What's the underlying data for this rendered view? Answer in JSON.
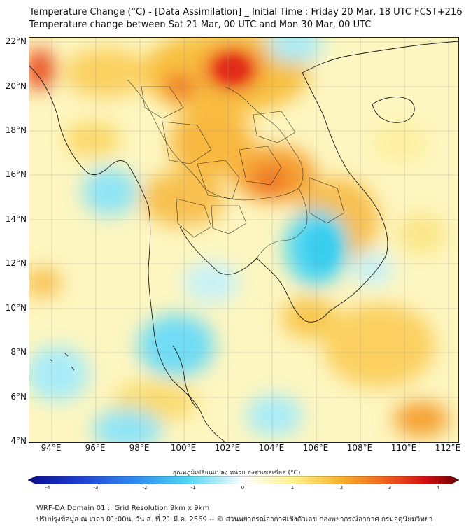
{
  "header": {
    "title_line1": "Temperature Change (°C) - [Data Assimilation] _ Initial Time : Friday 20 Mar, 18 UTC FCST+216",
    "title_line2": "Temperature change between Sat 21 Mar, 00 UTC and Mon 30 Mar, 00 UTC"
  },
  "map": {
    "lat_labels": [
      "22°N",
      "20°N",
      "18°N",
      "16°N",
      "14°N",
      "12°N",
      "10°N",
      "8°N",
      "6°N",
      "4°N"
    ],
    "lon_labels": [
      "94°E",
      "96°E",
      "98°E",
      "100°E",
      "102°E",
      "104°E",
      "106°E",
      "108°E",
      "110°E",
      "112°E"
    ],
    "anomalies": [
      {
        "region": "northern Laos / Yunnan border",
        "value": 3.0,
        "color": "#e8331a"
      },
      {
        "region": "northern Thailand west",
        "value": 2.6,
        "color": "#f06a20"
      },
      {
        "region": "northeast Thailand / Laos",
        "value": 2.3,
        "color": "#f08a20"
      },
      {
        "region": "Myanmar north coast",
        "value": 2.8,
        "color": "#e85020"
      },
      {
        "region": "Tonle Sap / Cambodia",
        "value": -1.4,
        "color": "#4fd6f2"
      },
      {
        "region": "southern Thai peninsula",
        "value": -1.2,
        "color": "#6fdcf5"
      },
      {
        "region": "Andaman Sea north",
        "value": -1.0,
        "color": "#8fe4f5"
      },
      {
        "region": "South China Sea south-east",
        "value": 2.2,
        "color": "#f5a030"
      },
      {
        "region": "Hainan",
        "value": 0.6,
        "color": "#fff5a8"
      }
    ]
  },
  "colorbar": {
    "label": "อุณหภูมิเปลี่ยนแปลง หน่วย องศาเซลเซียส (°C)",
    "ticks": [
      "-4",
      "-3",
      "-2",
      "-1",
      "0",
      "1",
      "2",
      "3",
      "4"
    ],
    "min": -4,
    "max": 4,
    "colors": [
      "#0a0a8c",
      "#1e3fd0",
      "#2f8cf0",
      "#4fd6f2",
      "#ffffff",
      "#fff18a",
      "#f8b430",
      "#f06a20",
      "#d41010",
      "#6e0000"
    ]
  },
  "footer": {
    "line1": "WRF-DA Domain 01 :: Grid Resolution 9km x 9km",
    "line2": "ปรับปรุงข้อมูล ณ เวลา 01:00น. วัน ส. ที่ 21 มี.ค. 2569 -- © ส่วนพยากรณ์อากาศเชิงตัวเลข กองพยากรณ์อากาศ กรมอุตุนิยมวิทยา"
  }
}
